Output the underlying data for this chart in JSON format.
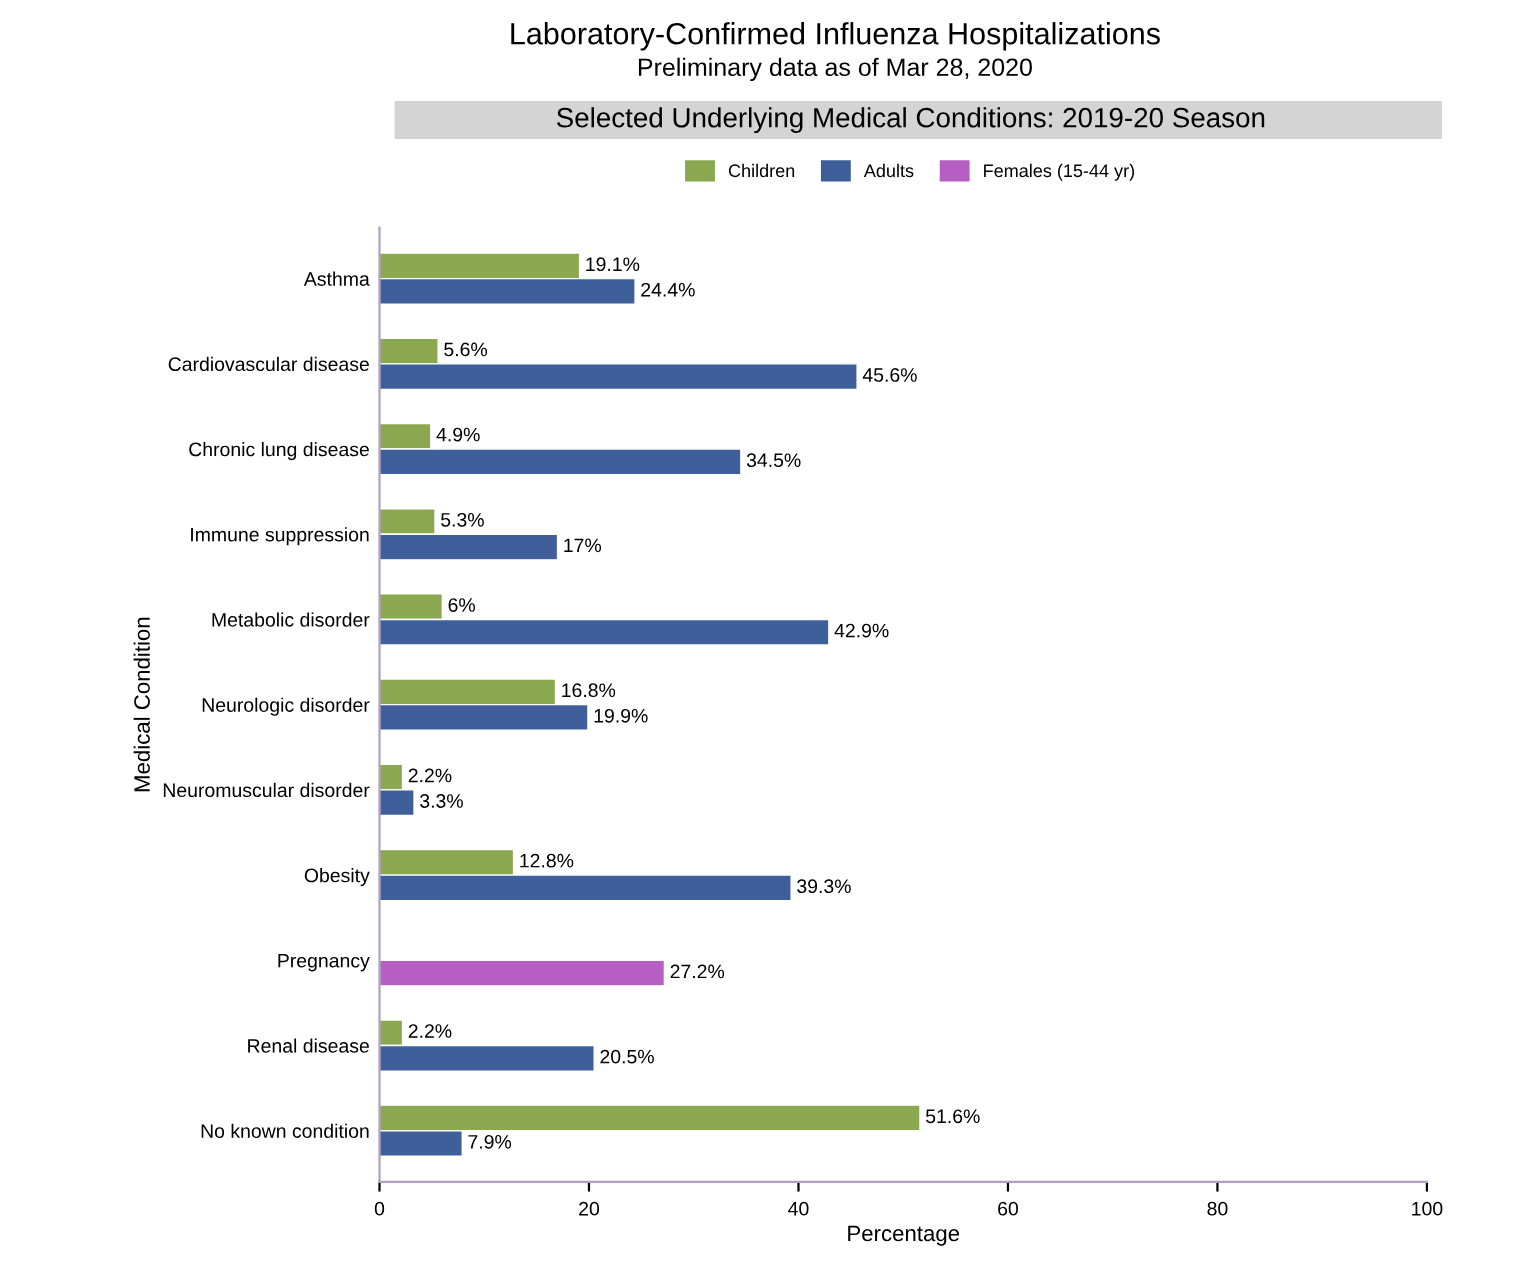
{
  "chart_data": {
    "type": "bar",
    "orientation": "horizontal",
    "title": "Laboratory-Confirmed Influenza Hospitalizations",
    "subtitle": "Preliminary data as of Mar 28, 2020",
    "annotations": [
      "Selected Underlying Medical Conditions: 2019-20 Season"
    ],
    "xlabel": "Percentage",
    "ylabel": "Medical Condition",
    "categories": [
      "Asthma",
      "Cardiovascular disease",
      "Chronic lung disease",
      "Immune suppression",
      "Metabolic disorder",
      "Neurologic disorder",
      "Neuromuscular disorder",
      "Obesity",
      "Pregnancy",
      "Renal disease",
      "No known condition"
    ],
    "series": [
      {
        "name": "Children",
        "color": "#8aa84f",
        "values": [
          19.1,
          5.6,
          4.9,
          5.3,
          6,
          16.8,
          2.2,
          12.8,
          null,
          2.2,
          51.6
        ],
        "value_labels": [
          "19.1%",
          "5.6%",
          "4.9%",
          "5.3%",
          "6%",
          "16.8%",
          "2.2%",
          "12.8%",
          null,
          "2.2%",
          "51.6%"
        ]
      },
      {
        "name": "Adults",
        "color": "#3e5f9a",
        "values": [
          24.4,
          45.6,
          34.5,
          17,
          42.9,
          19.9,
          3.3,
          39.3,
          null,
          20.5,
          7.9
        ],
        "value_labels": [
          "24.4%",
          "45.6%",
          "34.5%",
          "17%",
          "42.9%",
          "19.9%",
          "3.3%",
          "39.3%",
          null,
          "20.5%",
          "7.9%"
        ]
      },
      {
        "name": "Females (15-44 yr)",
        "color": "#b45fc1",
        "values": [
          null,
          null,
          null,
          null,
          null,
          null,
          null,
          null,
          27.2,
          null,
          null
        ],
        "value_labels": [
          null,
          null,
          null,
          null,
          null,
          null,
          null,
          null,
          "27.2%",
          null,
          null
        ]
      }
    ],
    "xlim": [
      0,
      100
    ],
    "xticks": [
      0,
      20,
      40,
      60,
      80,
      100
    ],
    "legend": "top",
    "grid": false
  }
}
